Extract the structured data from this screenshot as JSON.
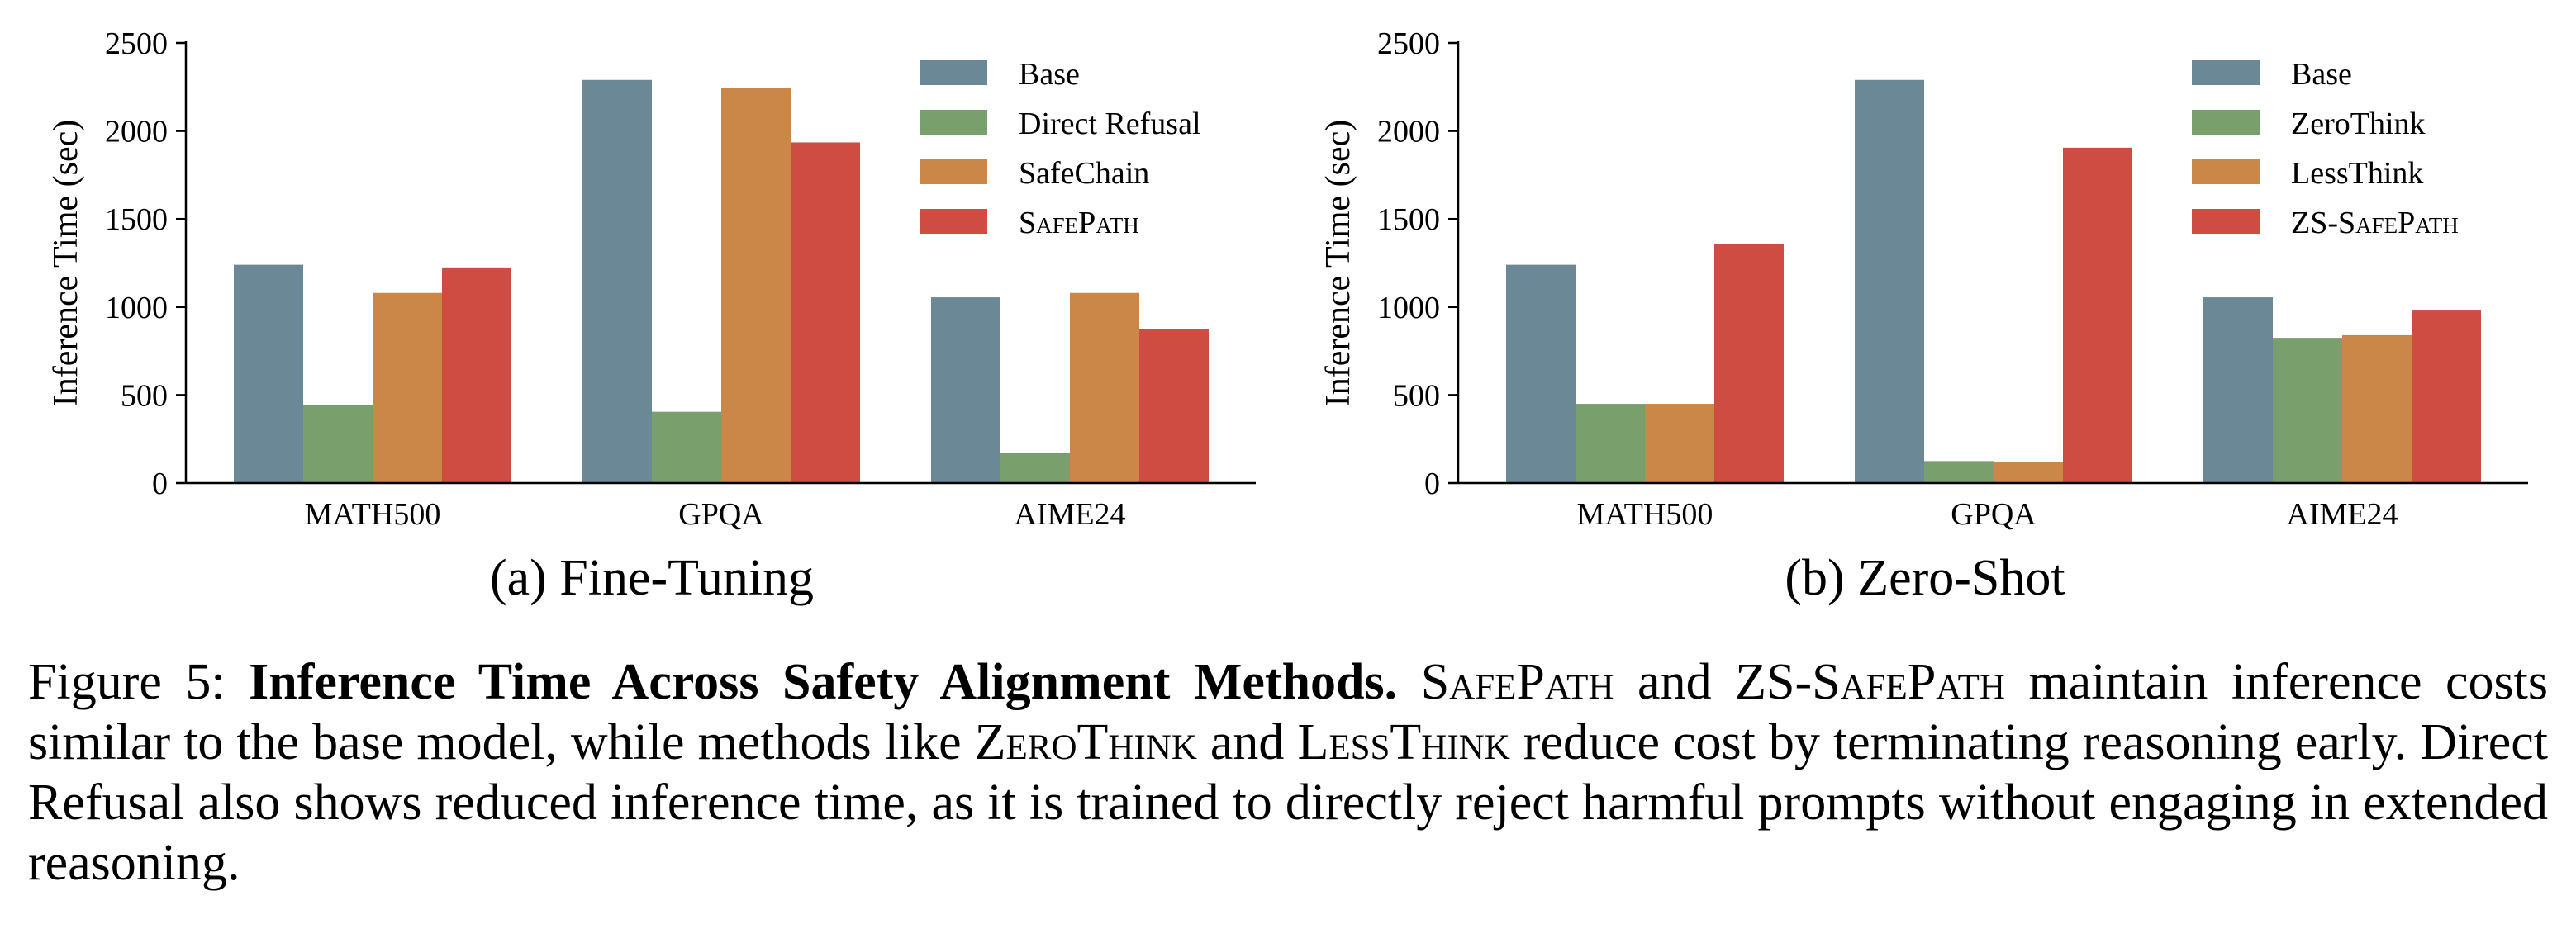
{
  "colors": {
    "base": "#6a8896",
    "green": "#789f6c",
    "orange": "#cb8748",
    "red": "#cf4c43"
  },
  "chart_data": [
    {
      "type": "bar",
      "subcaption": "(a) Fine-Tuning",
      "ylabel": "Inference Time (sec)",
      "ylim": [
        0,
        2500
      ],
      "yticks": [
        0,
        500,
        1000,
        1500,
        2000,
        2500
      ],
      "categories": [
        "MATH500",
        "GPQA",
        "AIME24"
      ],
      "legend_position": "top-right",
      "series": [
        {
          "name": "Base",
          "color": "#6a8896",
          "values": [
            1240,
            2290,
            1055
          ]
        },
        {
          "name": "Direct Refusal",
          "color": "#789f6c",
          "values": [
            445,
            405,
            170
          ]
        },
        {
          "name": "SafeChain",
          "color": "#cb8748",
          "values": [
            1080,
            2245,
            1080
          ]
        },
        {
          "name": "SafePath",
          "color": "#cf4c43",
          "values": [
            1225,
            1935,
            875
          ],
          "smallcaps": true
        }
      ]
    },
    {
      "type": "bar",
      "subcaption": "(b) Zero-Shot",
      "ylabel": "Inference Time (sec)",
      "ylim": [
        0,
        2500
      ],
      "yticks": [
        0,
        500,
        1000,
        1500,
        2000,
        2500
      ],
      "categories": [
        "MATH500",
        "GPQA",
        "AIME24"
      ],
      "legend_position": "top-right",
      "series": [
        {
          "name": "Base",
          "color": "#6a8896",
          "values": [
            1240,
            2290,
            1055
          ]
        },
        {
          "name": "ZeroThink",
          "color": "#789f6c",
          "values": [
            450,
            125,
            825
          ]
        },
        {
          "name": "LessThink",
          "color": "#cb8748",
          "values": [
            450,
            120,
            840
          ]
        },
        {
          "name": "ZS-SafePath",
          "color": "#cf4c43",
          "values": [
            1360,
            1905,
            980
          ],
          "smallcaps": true
        }
      ]
    }
  ],
  "caption": {
    "label": "Figure 5:",
    "title": "Inference Time Across Safety Alignment Methods.",
    "m1": "SafePath",
    "t1": "and",
    "m2": "ZS-SafePath",
    "t2": "maintain inference costs similar to the base model, while methods like",
    "m3": "ZeroThink",
    "t3": "and",
    "m4": "LessThink",
    "t4": "reduce cost by terminating reasoning early. Direct Refusal also shows reduced inference time, as it is trained to directly reject harmful prompts without engaging in extended reasoning."
  }
}
